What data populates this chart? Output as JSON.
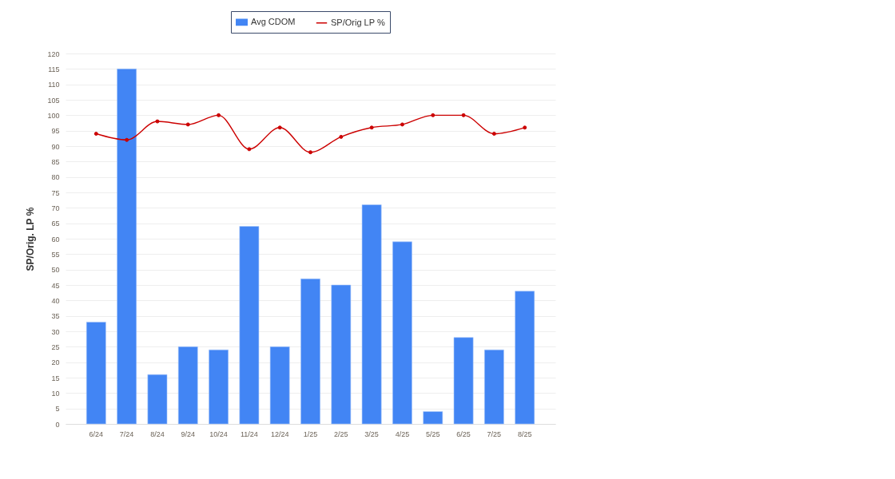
{
  "chart_data": {
    "type": "bar",
    "ylabel": "SP/Orig. LP %",
    "categories": [
      "6/24",
      "7/24",
      "8/24",
      "9/24",
      "10/24",
      "11/24",
      "12/24",
      "1/25",
      "2/25",
      "3/25",
      "4/25",
      "5/25",
      "6/25",
      "7/25",
      "8/25"
    ],
    "series": [
      {
        "name": "Avg CDOM",
        "type": "bar",
        "color": "#4285f4",
        "values": [
          33,
          115,
          16,
          25,
          24,
          64,
          25,
          47,
          45,
          71,
          59,
          4,
          28,
          24,
          43
        ]
      },
      {
        "name": "SP/Orig LP %",
        "type": "line",
        "color": "#cc0000",
        "values": [
          94,
          92,
          98,
          97,
          100,
          89,
          96,
          88,
          93,
          96,
          97,
          100,
          100,
          94,
          96
        ]
      }
    ],
    "ylim": [
      0,
      120
    ],
    "yticks": [
      0,
      5,
      10,
      15,
      20,
      25,
      30,
      35,
      40,
      45,
      50,
      55,
      60,
      65,
      70,
      75,
      80,
      85,
      90,
      95,
      100,
      105,
      110,
      115,
      120
    ],
    "grid": "y",
    "legend": "top",
    "marker": "circle"
  }
}
